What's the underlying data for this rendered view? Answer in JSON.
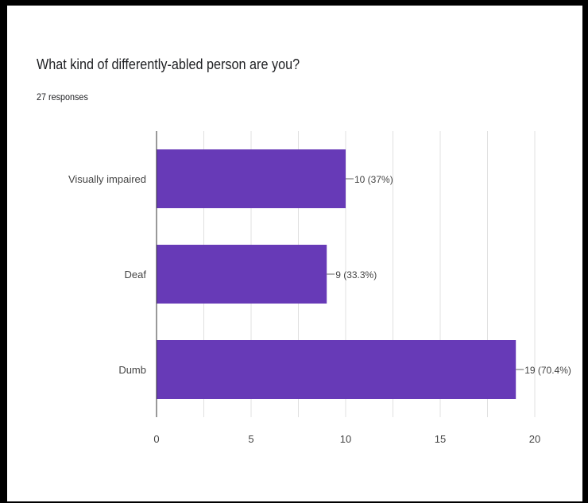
{
  "header": {
    "title": "What kind of differently-abled person are you?",
    "subtitle": "27 responses"
  },
  "colors": {
    "bar": "#673ab7",
    "grid": "#e0e0e0",
    "axis": "#333333",
    "text": "#202124"
  },
  "chart_data": {
    "type": "bar",
    "orientation": "horizontal",
    "title": "What kind of differently-abled person are you?",
    "subtitle": "27 responses",
    "categories": [
      "Visually impaired",
      "Deaf",
      "Dumb"
    ],
    "values": [
      10,
      9,
      19
    ],
    "data_labels": [
      "10 (37%)",
      "9 (33.3%)",
      "19 (70.4%)"
    ],
    "xlim": [
      0,
      20
    ],
    "xticks": [
      0,
      5,
      10,
      15,
      20
    ],
    "xtick_labels": [
      "0",
      "5",
      "10",
      "15",
      "20"
    ],
    "grid": true,
    "legend": "none"
  }
}
